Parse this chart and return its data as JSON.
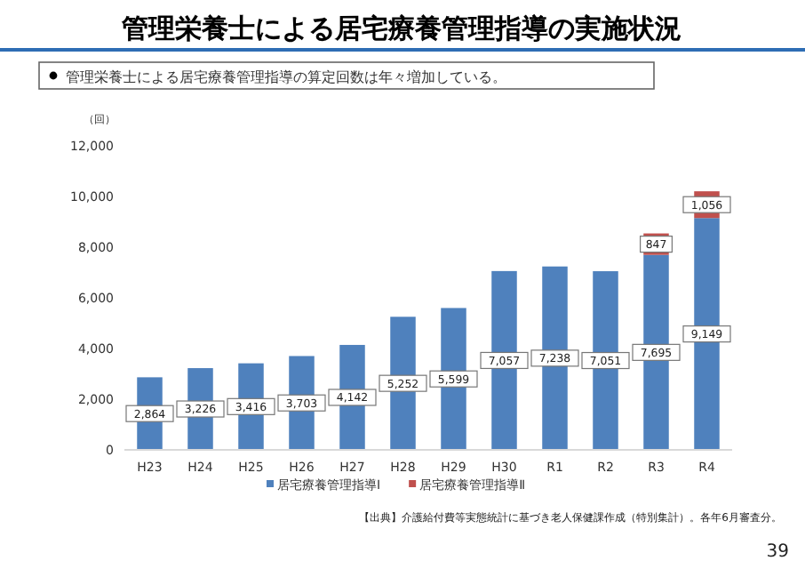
{
  "chart_data": {
    "type": "bar",
    "title": "管理栄養士による居宅療養管理指導の実施状況",
    "subtitle": "管理栄養士による居宅療養管理指導の算定回数は年々増加している。",
    "ylabel": "（回）",
    "categories": [
      "H23",
      "H24",
      "H25",
      "H26",
      "H27",
      "H28",
      "H29",
      "H30",
      "R1",
      "R2",
      "R3",
      "R4"
    ],
    "series": [
      {
        "name": "居宅療養管理指導Ⅰ",
        "color": "#4f81bd",
        "values": [
          2864,
          3226,
          3416,
          3703,
          4142,
          5252,
          5599,
          7057,
          7238,
          7051,
          7695,
          9149
        ],
        "value_labels": [
          "2,864",
          "3,226",
          "3,416",
          "3,703",
          "4,142",
          "5,252",
          "5,599",
          "7,057",
          "7,238",
          "7,051",
          "7,695",
          "9,149"
        ]
      },
      {
        "name": "居宅療養管理指導Ⅱ",
        "color": "#c0504d",
        "values": [
          null,
          null,
          null,
          null,
          null,
          null,
          null,
          null,
          null,
          null,
          847,
          1056
        ],
        "value_labels": [
          null,
          null,
          null,
          null,
          null,
          null,
          null,
          null,
          null,
          null,
          "847",
          "1,056"
        ]
      }
    ],
    "stacked": true,
    "ylim": [
      0,
      12000
    ],
    "yticks": [
      {
        "value": 0,
        "label": "0"
      },
      {
        "value": 2000,
        "label": "2,000"
      },
      {
        "value": 4000,
        "label": "4,000"
      },
      {
        "value": 6000,
        "label": "6,000"
      },
      {
        "value": 8000,
        "label": "8,000"
      },
      {
        "value": 10000,
        "label": "10,000"
      },
      {
        "value": 12000,
        "label": "12,000"
      }
    ],
    "grid": false,
    "legend": "bottom",
    "annotations": [
      "【出典】介護給付費等実態統計に基づき老人保健課作成（特別集計）。各年6月審査分。",
      "39"
    ]
  }
}
